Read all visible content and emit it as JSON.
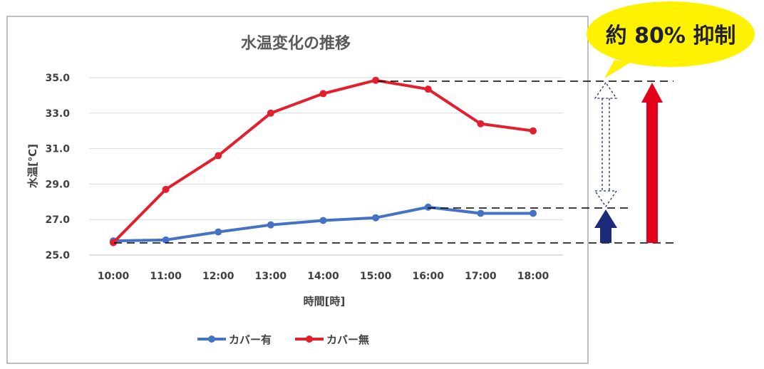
{
  "chart_data": {
    "type": "line",
    "title": "水温変化の推移",
    "xlabel": "時間[時]",
    "ylabel": "水温[℃]",
    "categories": [
      "10:00",
      "11:00",
      "12:00",
      "13:00",
      "14:00",
      "15:00",
      "16:00",
      "17:00",
      "18:00"
    ],
    "yticks": [
      "25.0",
      "27.0",
      "29.0",
      "31.0",
      "33.0",
      "35.0"
    ],
    "ylim": [
      25,
      35
    ],
    "grid": true,
    "legend_position": "bottom",
    "series": [
      {
        "name": "カバー有",
        "color": "#4472C4",
        "values": [
          25.8,
          25.85,
          26.3,
          26.7,
          26.95,
          27.1,
          27.7,
          27.35,
          27.35
        ]
      },
      {
        "name": "カバー無",
        "color": "#E31E2D",
        "values": [
          25.7,
          28.7,
          30.6,
          33.0,
          34.1,
          34.85,
          34.35,
          32.4,
          32.0
        ]
      }
    ]
  },
  "callout": {
    "text": "約 80% 抑制",
    "fill": "#FFF200"
  },
  "arrows": {
    "red_color": "#E3001B",
    "navy_color": "#1C2A7A"
  }
}
